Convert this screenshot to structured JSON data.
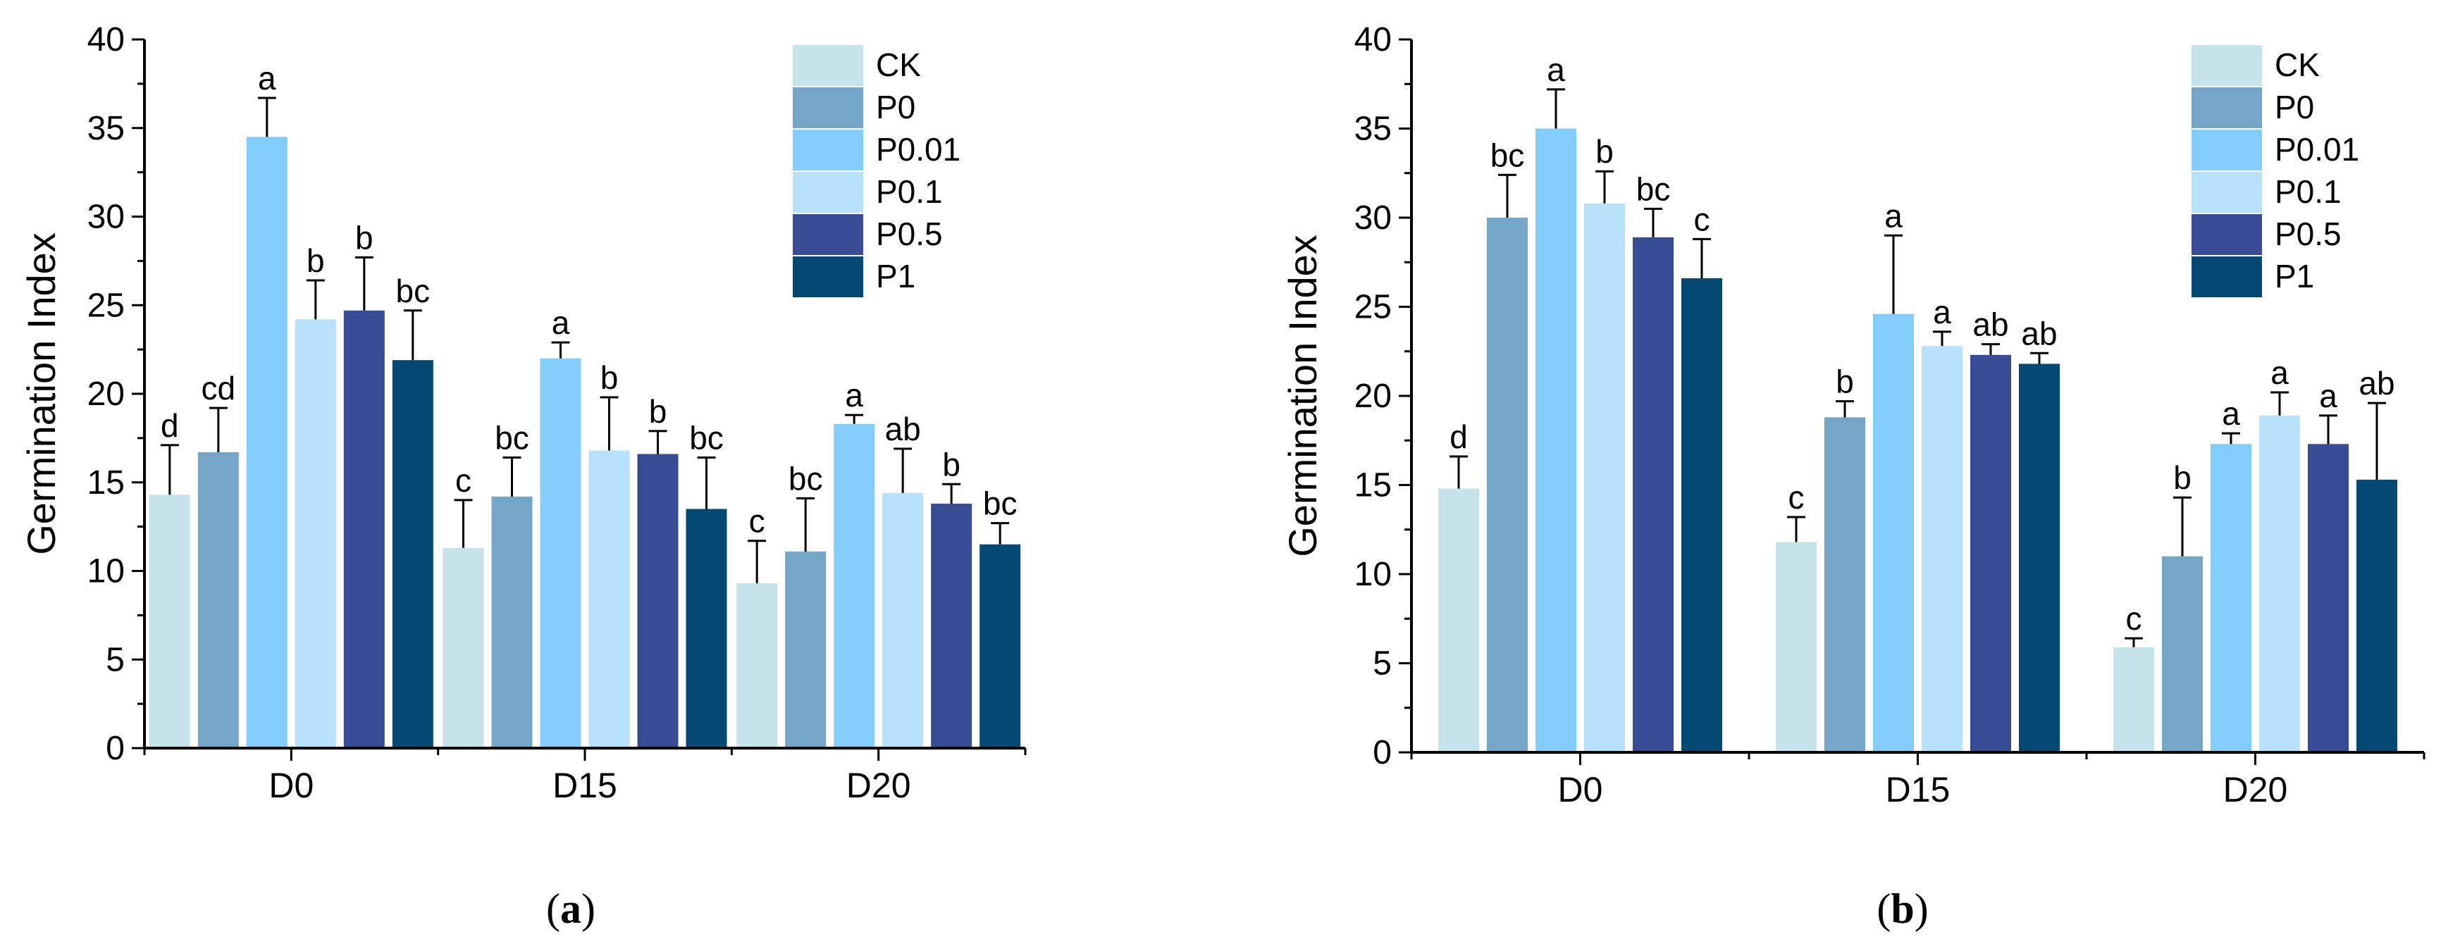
{
  "chart_data": [
    {
      "type": "bar",
      "ylabel": "Germination Index",
      "ylim": [
        0,
        40
      ],
      "yticks": [
        0,
        5,
        10,
        15,
        20,
        25,
        30,
        35,
        40
      ],
      "categories": [
        "D0",
        "D15",
        "D20"
      ],
      "legend_position": "top-right",
      "panel_label": "(a)",
      "series": [
        {
          "name": "CK",
          "color": "#c6e3ec",
          "values": [
            14.3,
            11.3,
            9.3
          ],
          "errors": [
            2.8,
            2.7,
            2.4
          ],
          "letters": [
            "d",
            "c",
            "c"
          ]
        },
        {
          "name": "P0",
          "color": "#75a6c8",
          "values": [
            16.7,
            14.2,
            11.1
          ],
          "errors": [
            2.5,
            2.2,
            3.0
          ],
          "letters": [
            "cd",
            "bc",
            "bc"
          ]
        },
        {
          "name": "P0.01",
          "color": "#82cdfb",
          "values": [
            34.5,
            22.0,
            18.3
          ],
          "errors": [
            2.2,
            0.9,
            0.5
          ],
          "letters": [
            "a",
            "a",
            "a"
          ]
        },
        {
          "name": "P0.1",
          "color": "#b8e2fb",
          "values": [
            24.2,
            16.8,
            14.4
          ],
          "errors": [
            2.2,
            3.0,
            2.5
          ],
          "letters": [
            "b",
            "b",
            "ab"
          ]
        },
        {
          "name": "P0.5",
          "color": "#384c96",
          "values": [
            24.7,
            16.6,
            13.8
          ],
          "errors": [
            3.0,
            1.3,
            1.1
          ],
          "letters": [
            "b",
            "b",
            "b"
          ]
        },
        {
          "name": "P1",
          "color": "#044874",
          "values": [
            21.9,
            13.5,
            11.5
          ],
          "errors": [
            2.8,
            2.9,
            1.2
          ],
          "letters": [
            "bc",
            "bc",
            "bc"
          ]
        }
      ]
    },
    {
      "type": "bar",
      "ylabel": "Germination Index",
      "ylim": [
        0,
        40
      ],
      "yticks": [
        0,
        5,
        10,
        15,
        20,
        25,
        30,
        35,
        40
      ],
      "categories": [
        "D0",
        "D15",
        "D20"
      ],
      "legend_position": "top-right",
      "panel_label": "(b)",
      "series": [
        {
          "name": "CK",
          "color": "#c6e3ec",
          "values": [
            14.8,
            11.8,
            5.9
          ],
          "errors": [
            1.8,
            1.4,
            0.5
          ],
          "letters": [
            "d",
            "c",
            "c"
          ]
        },
        {
          "name": "P0",
          "color": "#75a6c8",
          "values": [
            30.0,
            18.8,
            11.0
          ],
          "errors": [
            2.4,
            0.9,
            3.3
          ],
          "letters": [
            "bc",
            "b",
            "b"
          ]
        },
        {
          "name": "P0.01",
          "color": "#82cdfb",
          "values": [
            35.0,
            24.6,
            17.3
          ],
          "errors": [
            2.2,
            4.4,
            0.6
          ],
          "letters": [
            "a",
            "a",
            "a"
          ]
        },
        {
          "name": "P0.1",
          "color": "#b8e2fb",
          "values": [
            30.8,
            22.8,
            18.9
          ],
          "errors": [
            1.8,
            0.8,
            1.3
          ],
          "letters": [
            "b",
            "a",
            "a"
          ]
        },
        {
          "name": "P0.5",
          "color": "#384c96",
          "values": [
            28.9,
            22.3,
            17.3
          ],
          "errors": [
            1.6,
            0.6,
            1.6
          ],
          "letters": [
            "bc",
            "ab",
            "a"
          ]
        },
        {
          "name": "P1",
          "color": "#044874",
          "values": [
            26.6,
            21.8,
            15.3
          ],
          "errors": [
            2.2,
            0.6,
            4.3
          ],
          "letters": [
            "c",
            "ab",
            "ab"
          ]
        }
      ]
    }
  ]
}
